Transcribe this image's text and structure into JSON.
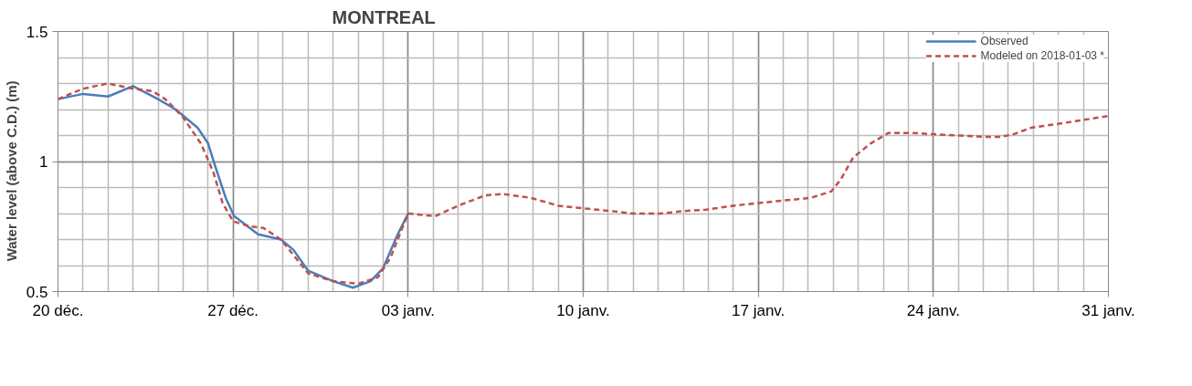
{
  "chart_data": {
    "type": "line",
    "title": "MONTREAL",
    "ylabel": "Water level (above C.D.)      (m)",
    "xlim": [
      "2017-12-20",
      "2018-01-31"
    ],
    "xticks": [
      {
        "value": "2017-12-20",
        "label": "20 déc."
      },
      {
        "value": "2017-12-27",
        "label": "27 déc."
      },
      {
        "value": "2018-01-03",
        "label": "03 janv."
      },
      {
        "value": "2018-01-10",
        "label": "10 janv."
      },
      {
        "value": "2018-01-17",
        "label": "17 janv."
      },
      {
        "value": "2018-01-24",
        "label": "24 janv."
      },
      {
        "value": "2018-01-31",
        "label": "31 janv."
      }
    ],
    "ylim": [
      0.5,
      1.5
    ],
    "yticks": [
      0.5,
      1,
      1.5
    ],
    "grid": true,
    "legend": "top right",
    "series": [
      {
        "name": "Observed",
        "color": "#4a7ebb",
        "line_style": "solid",
        "x": [
          "2017-12-20T00:00",
          "2017-12-21T00:00",
          "2017-12-22T00:00",
          "2017-12-23T00:00",
          "2017-12-24T00:00",
          "2017-12-24T17:00",
          "2017-12-25T14:00",
          "2017-12-26T00:00",
          "2017-12-26T07:00",
          "2017-12-26T17:00",
          "2017-12-27T01:00",
          "2017-12-28T00:00",
          "2017-12-28T22:00",
          "2017-12-29T10:00",
          "2017-12-30T00:00",
          "2017-12-31T00:00",
          "2017-12-31T19:00",
          "2018-01-01T12:00",
          "2018-01-02T00:00",
          "2018-01-02T14:00",
          "2018-01-03T00:00"
        ],
        "values": [
          1.24,
          1.26,
          1.25,
          1.29,
          1.24,
          1.2,
          1.13,
          1.07,
          0.98,
          0.86,
          0.79,
          0.72,
          0.7,
          0.66,
          0.58,
          0.54,
          0.515,
          0.54,
          0.59,
          0.72,
          0.8
        ]
      },
      {
        "name": "Modeled on 2018-01-03 *",
        "color": "#c0504d",
        "line_style": "dashed",
        "x": [
          "2017-12-20T00:00",
          "2017-12-21T00:00",
          "2017-12-22T00:00",
          "2017-12-23T00:00",
          "2017-12-23T19:00",
          "2017-12-24T07:00",
          "2017-12-25T00:00",
          "2017-12-25T17:00",
          "2017-12-26T05:00",
          "2017-12-26T14:00",
          "2017-12-27T00:00",
          "2017-12-27T17:00",
          "2017-12-28T05:00",
          "2017-12-28T22:00",
          "2017-12-30T00:00",
          "2017-12-31T00:00",
          "2018-01-01T00:00",
          "2018-01-01T19:00",
          "2018-01-02T07:00",
          "2018-01-03T00:00",
          "2018-01-04T02:00",
          "2018-01-05T00:00",
          "2018-01-06T02:00",
          "2018-01-06T19:00",
          "2018-01-07T22:00",
          "2018-01-09T00:00",
          "2018-01-10T00:00",
          "2018-01-11T02:00",
          "2018-01-12T00:00",
          "2018-01-13T02:00",
          "2018-01-14T02:00",
          "2018-01-14T22:00",
          "2018-01-16T00:00",
          "2018-01-17T00:00",
          "2018-01-18T00:00",
          "2018-01-19T02:00",
          "2018-01-19T22:00",
          "2018-01-20T07:00",
          "2018-01-20T19:00",
          "2018-01-21T12:00",
          "2018-01-22T05:00",
          "2018-01-23T02:00",
          "2018-01-24T00:00",
          "2018-01-25T02:00",
          "2018-01-26T00:00",
          "2018-01-26T17:00",
          "2018-01-27T05:00",
          "2018-01-27T22:00",
          "2018-01-29T00:00",
          "2018-01-30T00:00",
          "2018-01-31T00:00"
        ],
        "values": [
          1.24,
          1.28,
          1.3,
          1.28,
          1.27,
          1.24,
          1.17,
          1.07,
          0.96,
          0.84,
          0.77,
          0.75,
          0.745,
          0.7,
          0.57,
          0.54,
          0.53,
          0.555,
          0.63,
          0.8,
          0.79,
          0.83,
          0.87,
          0.875,
          0.86,
          0.83,
          0.82,
          0.81,
          0.8,
          0.8,
          0.81,
          0.815,
          0.83,
          0.84,
          0.85,
          0.86,
          0.885,
          0.93,
          1.015,
          1.07,
          1.11,
          1.11,
          1.105,
          1.1,
          1.095,
          1.095,
          1.105,
          1.13,
          1.145,
          1.16,
          1.175
        ]
      }
    ]
  }
}
